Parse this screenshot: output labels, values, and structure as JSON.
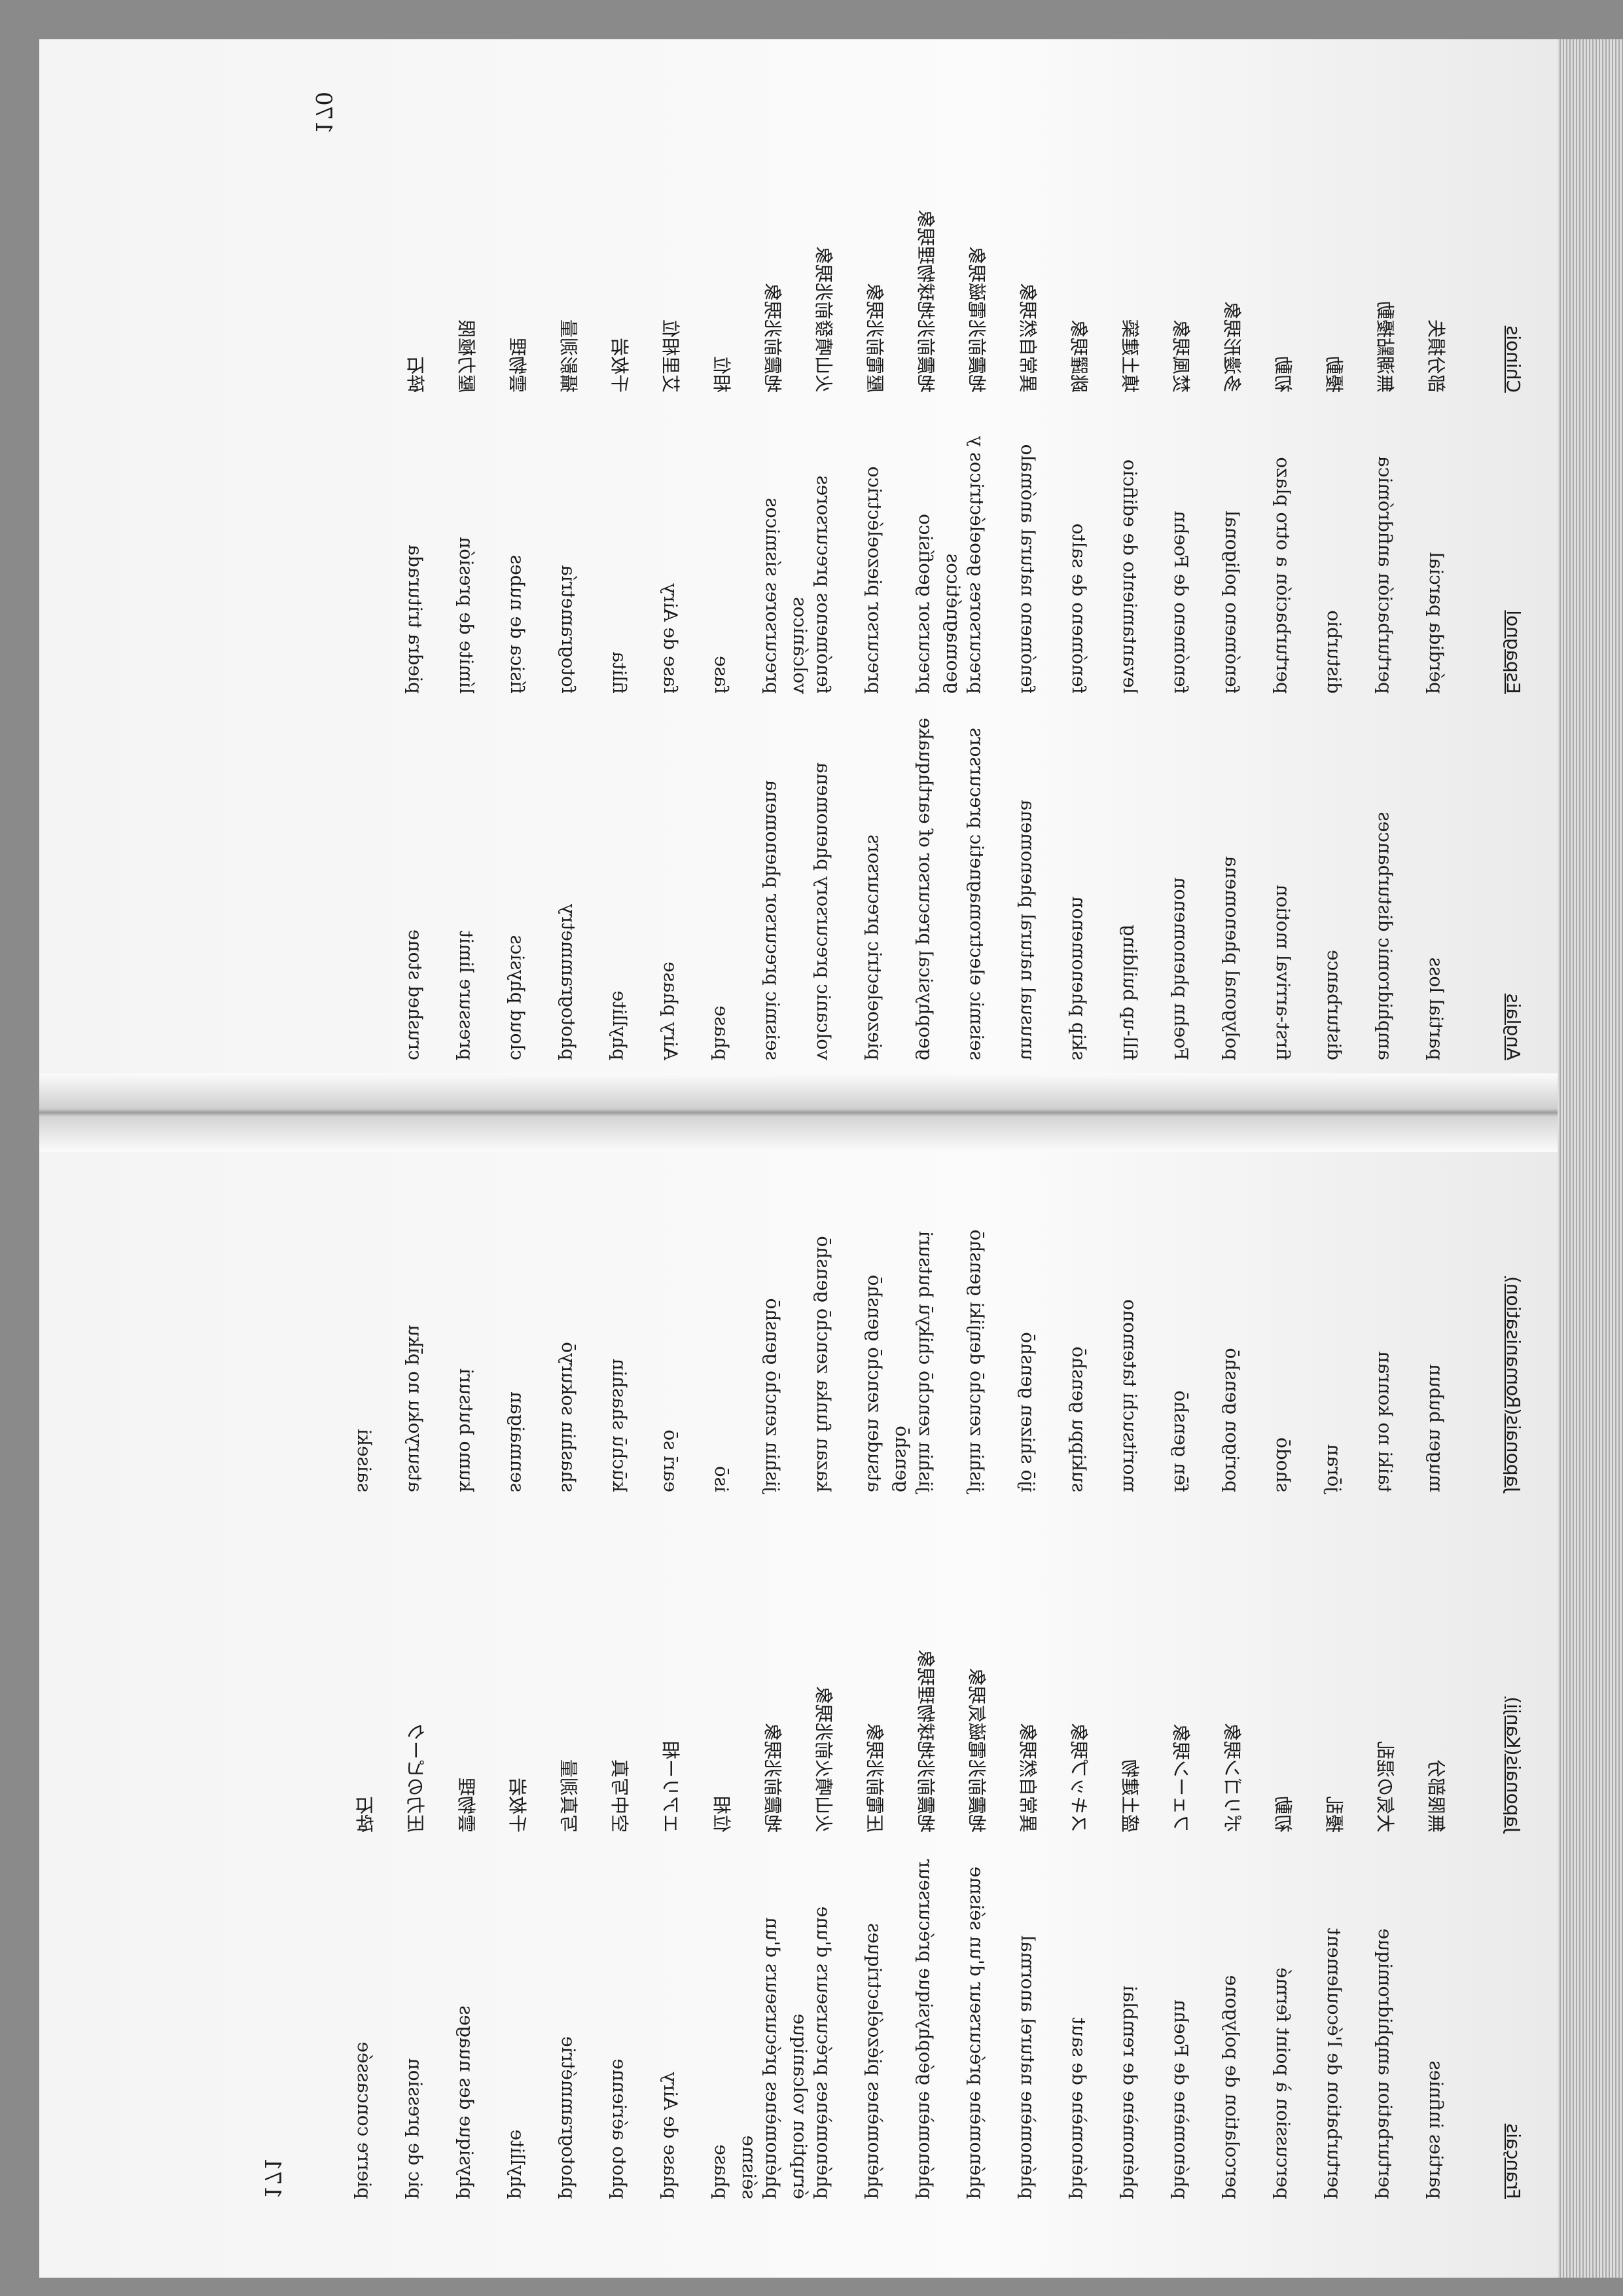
{
  "pages": [
    {
      "number": "170",
      "columns": [
        "Anglais",
        "Espagnol",
        "Chinois"
      ],
      "rows": [
        [
          "partial loss",
          "pérdida parcial",
          "部分損失"
        ],
        [
          "amphidromic disturbances",
          "perturbación anfidrómica",
          "無潮點擾動"
        ],
        [
          "disturbance",
          "disturbio",
          "擾動"
        ],
        [
          "first-arrival motion",
          "perturbación a otro plazo",
          "初動"
        ],
        [
          "polygonal phenomena",
          "fenómeno poligonal",
          "多邊形現象"
        ],
        [
          "Foehn phenomenon",
          "fenómeno de Foehn",
          "焚風現象"
        ],
        [
          "fill-up building",
          "levantamiento de edificio",
          "填土建築"
        ],
        [
          "skip phenomenon",
          "fenómeno de salto",
          "跳躍現象"
        ],
        [
          "unusual natural phenomena",
          "fenómeno natural anómalo",
          "異常自然現象"
        ],
        [
          "seismic electromagnetic precursors",
          "precursores geoeléctricos y geomagnéticos",
          "地震前兆電磁現象"
        ],
        [
          "geophysical precursor of earthquake",
          "precursor geofísico",
          "地震前兆地球物理現象"
        ],
        [
          "piezoelectric precursors",
          "precursor piezoeléctrico",
          "壓電前兆現象"
        ],
        [
          "volcanic precursory phenomena",
          "fenómenos precursores volcánicos",
          "火山噴發前兆現象"
        ],
        [
          "seismic precursor phenomena",
          "precursores sísmicos",
          "地震前兆現象"
        ],
        [
          "phase",
          "fase",
          "相位"
        ],
        [
          "Airy phase",
          "fase de Airy",
          "艾里相位"
        ],
        [
          "phyllite",
          "filita",
          "千枚岩"
        ],
        [
          "photogrammetry",
          "fotogrametría",
          "攝影測量"
        ],
        [
          "cloud physics",
          "física de nubes",
          "雲物理"
        ],
        [
          "pressure limit",
          "límite de presión",
          "壓力極限"
        ],
        [
          "crushed stone",
          "piedra triturada",
          "碎石"
        ]
      ]
    },
    {
      "number": "171",
      "columns": [
        "Français",
        "Japonais(Kanji)",
        "Japonais(Romanisation)"
      ],
      "rows": [
        [
          "parties infinies",
          "無限部分",
          "mugen bubun"
        ],
        [
          "perturbation amphidromique",
          "大気の混乱",
          "taiki no konran"
        ],
        [
          "perturbation de l'écoulement",
          "擾乱",
          "jōran"
        ],
        [
          "percussion à point fermé",
          "初動",
          "shodō"
        ],
        [
          "percolation de polygone",
          "ポリゴン現象",
          "porigon genshō"
        ],
        [
          "phénomène de Foehn",
          "フェーン現象",
          "fēn genshō"
        ],
        [
          "phénomène de remblai",
          "盛土建物",
          "moritsuchi tatemono"
        ],
        [
          "phénomène de saut",
          "スキップ現象",
          "sukippu genshō"
        ],
        [
          "phénomène naturel anormal",
          "異常自然現象",
          "ijō shizen genshō"
        ],
        [
          "phénomène précurseur d'un séisme",
          "地震前兆電磁気現象",
          "jishin zenchō denjiki genshō"
        ],
        [
          "phénomène géophysique précurseur",
          "地震前兆地球物理現象",
          "jishin zenchō chikyū butsuri genshō"
        ],
        [
          "phénomènes piézoélectriques",
          "圧電前兆現象",
          "atsuden zenchō genshō"
        ],
        [
          "phénomènes précurseurs d'une éruption volcanique",
          "火山噴火前兆現象",
          "kazan funka zenchō genshō"
        ],
        [
          "phénomènes précurseurs d'un séisme",
          "地震前兆現象",
          "jishin zenchō genshō"
        ],
        [
          "phase",
          "位相",
          "isō"
        ],
        [
          "phase de Airy",
          "エアリー相",
          "earī sō"
        ],
        [
          "photo aérienne",
          "空中写真",
          "kūchū shashin"
        ],
        [
          "photogrammétrie",
          "写真測量",
          "shashin sokuryō"
        ],
        [
          "phyllite",
          "千枚岩",
          "senmaigan"
        ],
        [
          "physique des nuages",
          "雲物理",
          "kumo butsuri"
        ],
        [
          "pic de pression",
          "圧力のピーク",
          "atsuryoku no pīku"
        ],
        [
          "pierre concassée",
          "砕石",
          "saiseki"
        ]
      ]
    }
  ]
}
